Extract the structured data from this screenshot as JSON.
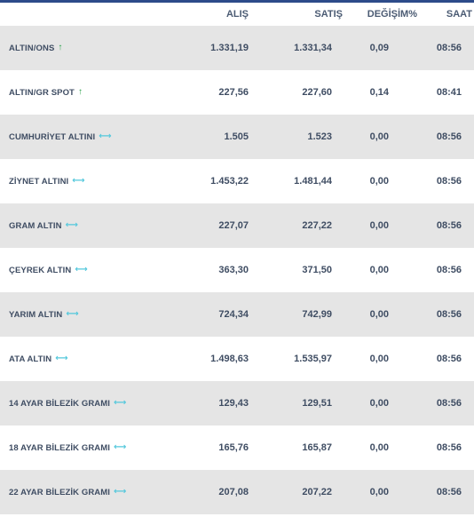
{
  "header": {
    "alis": "ALIŞ",
    "satis": "SATIŞ",
    "degisim": "DEĞİŞİM%",
    "saat": "SAAT"
  },
  "icons": {
    "up": "arrow-up-icon",
    "flat": "arrow-horizontal-icon"
  },
  "colors": {
    "up": "#2aa149",
    "flat": "#55c8dc",
    "shaded_row": "#e5e5e5",
    "top_bar": "#2d4b8a"
  },
  "rows": [
    {
      "name": "ALTIN/ONS",
      "trend": "up",
      "alis": "1.331,19",
      "satis": "1.331,34",
      "degisim": "0,09",
      "saat": "08:56"
    },
    {
      "name": "ALTIN/GR SPOT",
      "trend": "up",
      "alis": "227,56",
      "satis": "227,60",
      "degisim": "0,14",
      "saat": "08:41"
    },
    {
      "name": "CUMHURİYET ALTINI",
      "trend": "flat",
      "alis": "1.505",
      "satis": "1.523",
      "degisim": "0,00",
      "saat": "08:56"
    },
    {
      "name": "ZİYNET ALTINI",
      "trend": "flat",
      "alis": "1.453,22",
      "satis": "1.481,44",
      "degisim": "0,00",
      "saat": "08:56"
    },
    {
      "name": "GRAM ALTIN",
      "trend": "flat",
      "alis": "227,07",
      "satis": "227,22",
      "degisim": "0,00",
      "saat": "08:56"
    },
    {
      "name": "ÇEYREK ALTIN",
      "trend": "flat",
      "alis": "363,30",
      "satis": "371,50",
      "degisim": "0,00",
      "saat": "08:56"
    },
    {
      "name": "YARIM ALTIN",
      "trend": "flat",
      "alis": "724,34",
      "satis": "742,99",
      "degisim": "0,00",
      "saat": "08:56"
    },
    {
      "name": "ATA ALTIN",
      "trend": "flat",
      "alis": "1.498,63",
      "satis": "1.535,97",
      "degisim": "0,00",
      "saat": "08:56"
    },
    {
      "name": "14 AYAR BİLEZİK GRAMI",
      "trend": "flat",
      "alis": "129,43",
      "satis": "129,51",
      "degisim": "0,00",
      "saat": "08:56"
    },
    {
      "name": "18 AYAR BİLEZİK GRAMI",
      "trend": "flat",
      "alis": "165,76",
      "satis": "165,87",
      "degisim": "0,00",
      "saat": "08:56"
    },
    {
      "name": "22 AYAR BİLEZİK GRAMI",
      "trend": "flat",
      "alis": "207,08",
      "satis": "207,22",
      "degisim": "0,00",
      "saat": "08:56"
    }
  ]
}
